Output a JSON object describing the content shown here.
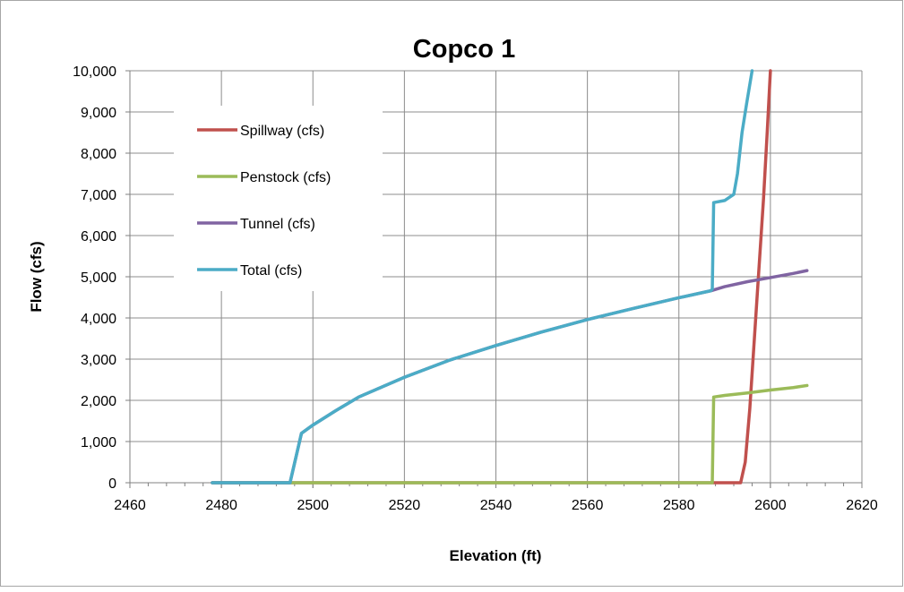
{
  "chart_data": {
    "type": "line",
    "title": "Copco 1",
    "xlabel": "Elevation (ft)",
    "ylabel": "Flow (cfs)",
    "xlim": [
      2460,
      2620
    ],
    "ylim": [
      0,
      10000
    ],
    "x_ticks": [
      2460,
      2480,
      2500,
      2520,
      2540,
      2560,
      2580,
      2600,
      2620
    ],
    "y_ticks": [
      0,
      1000,
      2000,
      3000,
      4000,
      5000,
      6000,
      7000,
      8000,
      9000,
      10000
    ],
    "x_tick_labels": [
      "2460",
      "2480",
      "2500",
      "2520",
      "2540",
      "2560",
      "2580",
      "2600",
      "2620"
    ],
    "y_tick_labels": [
      "0",
      "1,000",
      "2,000",
      "3,000",
      "4,000",
      "5,000",
      "6,000",
      "7,000",
      "8,000",
      "9,000",
      "10,000"
    ],
    "grid": true,
    "legend_position": "top-left",
    "series": [
      {
        "name": "Spillway (cfs)",
        "color": "#C0504D",
        "points": [
          [
            2478,
            0
          ],
          [
            2593.5,
            0
          ],
          [
            2594.5,
            500
          ],
          [
            2595.5,
            1800
          ],
          [
            2596.5,
            3500
          ],
          [
            2597.5,
            5200
          ],
          [
            2598.5,
            6900
          ],
          [
            2599.3,
            8500
          ],
          [
            2600,
            10000
          ]
        ]
      },
      {
        "name": "Penstock (cfs)",
        "color": "#9BBB59",
        "points": [
          [
            2478,
            0
          ],
          [
            2587.3,
            0
          ],
          [
            2587.6,
            2080
          ],
          [
            2590,
            2120
          ],
          [
            2595,
            2180
          ],
          [
            2600,
            2250
          ],
          [
            2605,
            2310
          ],
          [
            2608,
            2360
          ]
        ]
      },
      {
        "name": "Tunnel (cfs)",
        "color": "#8064A2",
        "points": [
          [
            2478,
            0
          ],
          [
            2495,
            0
          ],
          [
            2497.5,
            1200
          ],
          [
            2500,
            1400
          ],
          [
            2505,
            1750
          ],
          [
            2510,
            2080
          ],
          [
            2520,
            2560
          ],
          [
            2530,
            2980
          ],
          [
            2540,
            3330
          ],
          [
            2550,
            3660
          ],
          [
            2560,
            3960
          ],
          [
            2570,
            4230
          ],
          [
            2580,
            4490
          ],
          [
            2587,
            4660
          ],
          [
            2590,
            4760
          ],
          [
            2595,
            4880
          ],
          [
            2600,
            4980
          ],
          [
            2605,
            5080
          ],
          [
            2608,
            5150
          ]
        ]
      },
      {
        "name": "Total (cfs)",
        "color": "#4BACC6",
        "points": [
          [
            2478,
            0
          ],
          [
            2495,
            0
          ],
          [
            2497.5,
            1200
          ],
          [
            2500,
            1400
          ],
          [
            2505,
            1750
          ],
          [
            2510,
            2080
          ],
          [
            2520,
            2560
          ],
          [
            2530,
            2980
          ],
          [
            2540,
            3330
          ],
          [
            2550,
            3660
          ],
          [
            2560,
            3960
          ],
          [
            2570,
            4230
          ],
          [
            2580,
            4490
          ],
          [
            2587,
            4660
          ],
          [
            2587.3,
            4700
          ],
          [
            2587.6,
            6800
          ],
          [
            2590,
            6850
          ],
          [
            2592,
            7000
          ],
          [
            2592.8,
            7500
          ],
          [
            2593.8,
            8500
          ],
          [
            2594.8,
            9200
          ],
          [
            2596,
            10000
          ]
        ]
      }
    ]
  }
}
